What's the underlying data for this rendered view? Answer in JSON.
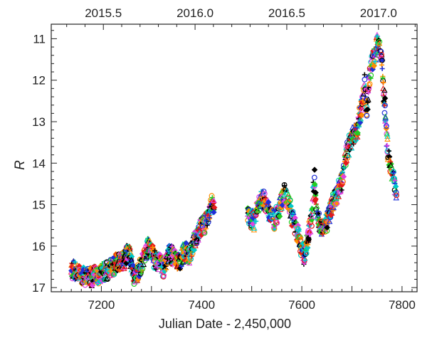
{
  "chart_data": {
    "type": "scatter",
    "xlabel": "Julian Date - 2,450,000",
    "ylabel": "R",
    "xlim": [
      7100,
      7830
    ],
    "ylim": [
      10.65,
      17.1
    ],
    "y_inverted": true,
    "x_ticks": [
      7200,
      7400,
      7600,
      7800
    ],
    "x_tick_labels": [
      "7200",
      "7400",
      "7600",
      "7800"
    ],
    "y_ticks": [
      11,
      12,
      13,
      14,
      15,
      16,
      17
    ],
    "y_tick_labels": [
      "11",
      "12",
      "13",
      "14",
      "15",
      "16",
      "17"
    ],
    "top_axis": {
      "tick_values": [
        7204,
        7387,
        7570,
        7753
      ],
      "tick_labels": [
        "2015.5",
        "2016.0",
        "2016.5",
        "2017.0"
      ]
    },
    "grid": false,
    "legend": "none",
    "marker_colors": [
      "#000000",
      "#1e2fd6",
      "#e31a1c",
      "#22cc22",
      "#00c8c8",
      "#e040e0",
      "#ff8c00"
    ],
    "light_curve": {
      "x": [
        7140,
        7160,
        7180,
        7200,
        7215,
        7230,
        7245,
        7255,
        7265,
        7275,
        7285,
        7295,
        7305,
        7315,
        7325,
        7335,
        7345,
        7355,
        7365,
        7375,
        7385,
        7395,
        7405,
        7420,
        7495,
        7505,
        7515,
        7525,
        7535,
        7545,
        7555,
        7565,
        7575,
        7585,
        7595,
        7600,
        7605,
        7610,
        7615,
        7620,
        7625,
        7630,
        7640,
        7650,
        7660,
        7670,
        7680,
        7690,
        7700,
        7710,
        7720,
        7725,
        7730,
        7735,
        7740,
        7745,
        7750,
        7755,
        7760,
        7765,
        7770,
        7775,
        7780,
        7785,
        7790
      ],
      "y": [
        16.55,
        16.7,
        16.75,
        16.65,
        16.6,
        16.4,
        16.35,
        16.1,
        16.7,
        16.6,
        16.2,
        15.95,
        16.3,
        16.4,
        16.55,
        16.2,
        16.25,
        16.4,
        16.1,
        16.2,
        15.9,
        15.6,
        15.5,
        15.0,
        15.3,
        15.4,
        14.9,
        14.9,
        15.2,
        15.4,
        15.1,
        14.7,
        15.0,
        15.5,
        15.8,
        16.1,
        16.25,
        16.0,
        15.6,
        15.3,
        14.3,
        15.2,
        15.6,
        15.4,
        15.0,
        14.8,
        14.4,
        13.7,
        13.4,
        13.2,
        12.6,
        12.0,
        12.7,
        11.9,
        11.6,
        11.4,
        11.1,
        11.3,
        11.6,
        12.5,
        13.5,
        14.0,
        14.2,
        14.5,
        14.8
      ]
    }
  }
}
